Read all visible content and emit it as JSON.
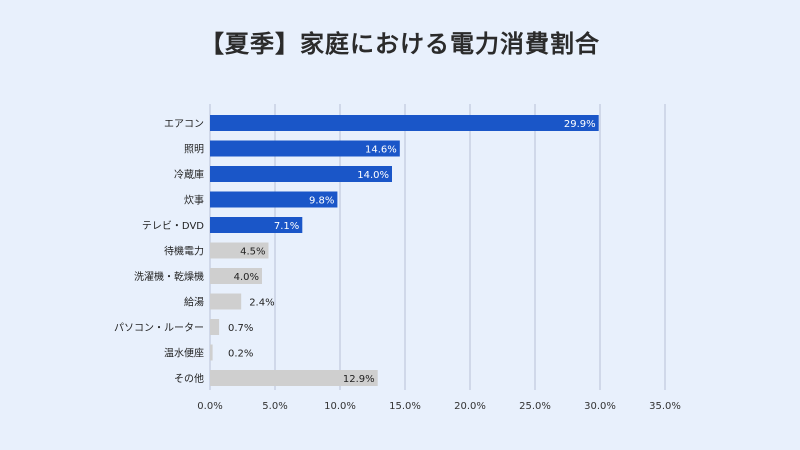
{
  "chart_data": {
    "type": "bar",
    "orientation": "horizontal",
    "title": "【夏季】家庭における電力消費割合",
    "categories": [
      "エアコン",
      "照明",
      "冷蔵庫",
      "炊事",
      "テレビ・DVD",
      "待機電力",
      "洗濯機・乾燥機",
      "給湯",
      "パソコン・ルーター",
      "温水便座",
      "その他"
    ],
    "values": [
      29.9,
      14.6,
      14.0,
      9.8,
      7.1,
      4.5,
      4.0,
      2.4,
      0.7,
      0.2,
      12.9
    ],
    "data_labels": [
      "29.9%",
      "14.6%",
      "14.0%",
      "9.8%",
      "7.1%",
      "4.5%",
      "4.0%",
      "2.4%",
      "0.7%",
      "0.2%",
      "12.9%"
    ],
    "highlighted": [
      true,
      true,
      true,
      true,
      true,
      false,
      false,
      false,
      false,
      false,
      false
    ],
    "xlim": [
      0,
      35
    ],
    "xticks": [
      0,
      5,
      10,
      15,
      20,
      25,
      30,
      35
    ],
    "xtick_labels": [
      "0.0%",
      "5.0%",
      "10.0%",
      "15.0%",
      "20.0%",
      "25.0%",
      "30.0%",
      "35.0%"
    ],
    "xlabel": "",
    "ylabel": "",
    "grid": true,
    "legend": false,
    "colors": {
      "highlight": "#1a56c8",
      "other": "#cfcfcf",
      "grid": "#b7c1d6",
      "background": "#e8f0fc"
    }
  }
}
